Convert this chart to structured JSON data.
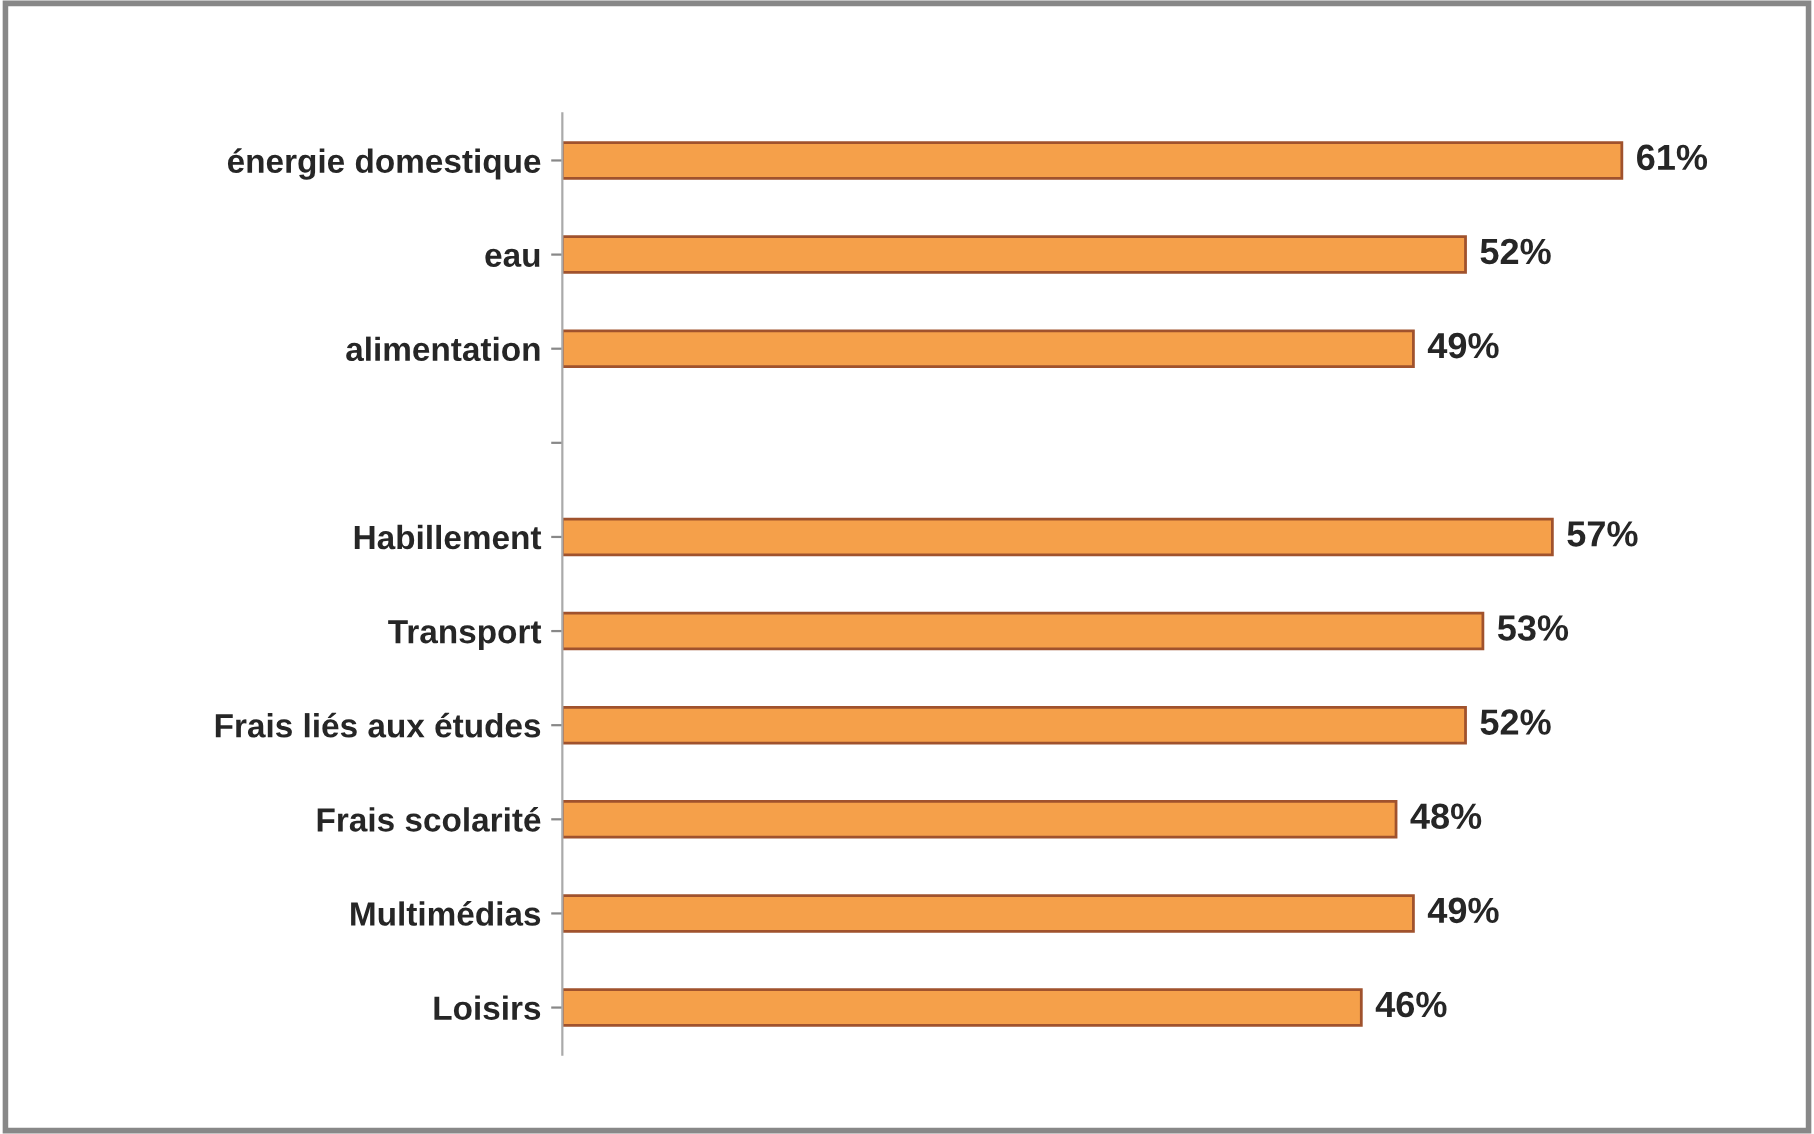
{
  "chart_data": {
    "type": "bar",
    "orientation": "horizontal",
    "categories": [
      "énergie domestique",
      "eau",
      "alimentation",
      null,
      "Habillement",
      "Transport",
      "Frais liés aux études",
      "Frais scolarité",
      "Multimédias",
      "Loisirs"
    ],
    "values": [
      61,
      52,
      49,
      null,
      57,
      53,
      52,
      48,
      49,
      46
    ],
    "value_labels": [
      "61%",
      "52%",
      "49%",
      null,
      "57%",
      "53%",
      "52%",
      "48%",
      "49%",
      "46%"
    ],
    "color": "#f5a04a",
    "tick_labels": "y",
    "grid": false,
    "legend": false
  }
}
